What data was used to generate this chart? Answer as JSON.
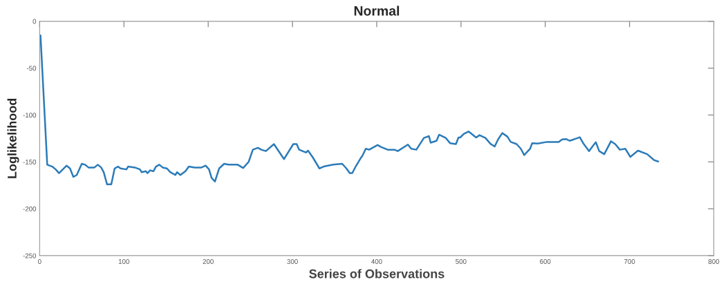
{
  "chart_data": {
    "type": "line",
    "title": "Normal",
    "xlabel": "Series of Observations",
    "ylabel": "Loglikelihood",
    "xlim": [
      0,
      800
    ],
    "xticks": [
      0,
      100,
      200,
      300,
      400,
      500,
      600,
      700,
      800
    ],
    "ylim": [
      -250,
      0
    ],
    "yticks": [
      -250,
      -200,
      -150,
      -100,
      -50,
      0
    ],
    "marker": "none",
    "line_style": "solid",
    "series": [
      {
        "color": "#2b7bb9",
        "x": [
          1,
          9,
          15,
          19,
          23,
          32,
          36,
          40,
          44,
          50,
          54,
          58,
          65,
          69,
          73,
          76,
          80,
          85,
          89,
          93,
          96,
          103,
          105,
          113,
          119,
          121,
          126,
          128,
          131,
          135,
          138,
          142,
          146,
          151,
          155,
          161,
          163,
          167,
          173,
          177,
          184,
          192,
          197,
          201,
          204,
          208,
          213,
          219,
          224,
          235,
          241.5,
          248,
          253,
          259,
          263,
          268.5,
          278,
          290,
          301,
          305,
          308,
          316,
          318.5,
          324,
          332,
          337,
          348,
          359,
          364,
          368,
          371,
          375,
          381,
          383,
          387,
          391,
          401,
          405,
          413,
          421,
          425,
          437,
          441,
          447,
          452,
          456,
          462,
          464,
          471,
          474,
          482,
          487,
          494,
          497,
          499,
          503.5,
          509,
          518,
          522,
          529,
          535,
          540,
          544,
          549,
          555,
          559,
          566,
          571,
          575,
          582,
          584.5,
          591,
          602,
          616,
          620,
          625,
          629,
          637,
          641,
          645,
          652,
          656,
          660,
          664,
          670,
          678,
          683,
          688.5,
          695,
          701,
          710,
          721,
          729,
          734
        ],
        "values": [
          -15,
          -153,
          -155,
          -158,
          -162,
          -154,
          -157,
          -166,
          -164,
          -152,
          -153,
          -156,
          -156,
          -153,
          -156,
          -161,
          -174,
          -174,
          -157,
          -155,
          -157,
          -158,
          -155,
          -156,
          -158,
          -161,
          -160,
          -162,
          -159,
          -160,
          -155,
          -153,
          -156,
          -157,
          -161,
          -164,
          -161,
          -164,
          -160,
          -155,
          -156,
          -156,
          -154,
          -158,
          -167,
          -171,
          -157,
          -152,
          -153,
          -153,
          -156.5,
          -150,
          -137,
          -135,
          -137,
          -138.5,
          -131,
          -147,
          -131,
          -131,
          -137,
          -140,
          -138,
          -145,
          -157,
          -155,
          -153,
          -152,
          -157,
          -162,
          -162,
          -155,
          -146,
          -143.5,
          -136,
          -137,
          -132,
          -134,
          -137,
          -137,
          -138.5,
          -131.6,
          -136,
          -137,
          -130,
          -124.5,
          -122.5,
          -129.5,
          -127.5,
          -121,
          -124.5,
          -130,
          -131,
          -124,
          -124,
          -120,
          -117.6,
          -124,
          -121.5,
          -124.5,
          -130.7,
          -133.6,
          -126,
          -119.3,
          -123,
          -128.7,
          -131,
          -136,
          -142.7,
          -136,
          -130,
          -130.4,
          -128.7,
          -128.7,
          -126,
          -125.7,
          -127.5,
          -125,
          -123.7,
          -130,
          -138.5,
          -133.6,
          -129,
          -138.5,
          -141.8,
          -128,
          -131,
          -137,
          -136,
          -144.7,
          -138,
          -141.8,
          -148,
          -149.6
        ]
      }
    ]
  }
}
